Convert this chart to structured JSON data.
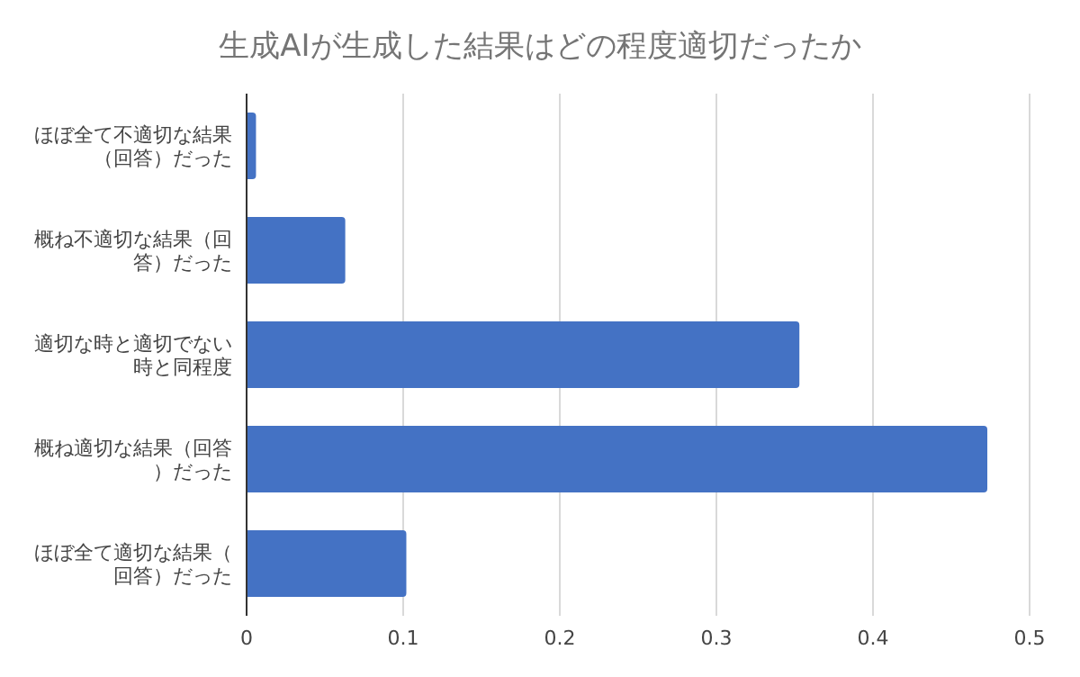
{
  "chart_data": {
    "type": "bar",
    "orientation": "horizontal",
    "title": "生成AIが生成した結果はどの程度適切だったか",
    "categories": [
      "ほぼ全て不適切な結果（回答）だった",
      "概ね不適切な結果（回答）だった",
      "適切な時と適切でない時と同程度",
      "概ね適切な結果（回答）だった",
      "ほぼ全て適切な結果（回答）だった"
    ],
    "values": [
      0.006,
      0.063,
      0.353,
      0.473,
      0.102
    ],
    "color": "#4472c4",
    "xlim": [
      0,
      0.5
    ],
    "xticks": [
      0,
      0.1,
      0.2,
      0.3,
      0.4,
      0.5
    ],
    "grid": "x"
  }
}
